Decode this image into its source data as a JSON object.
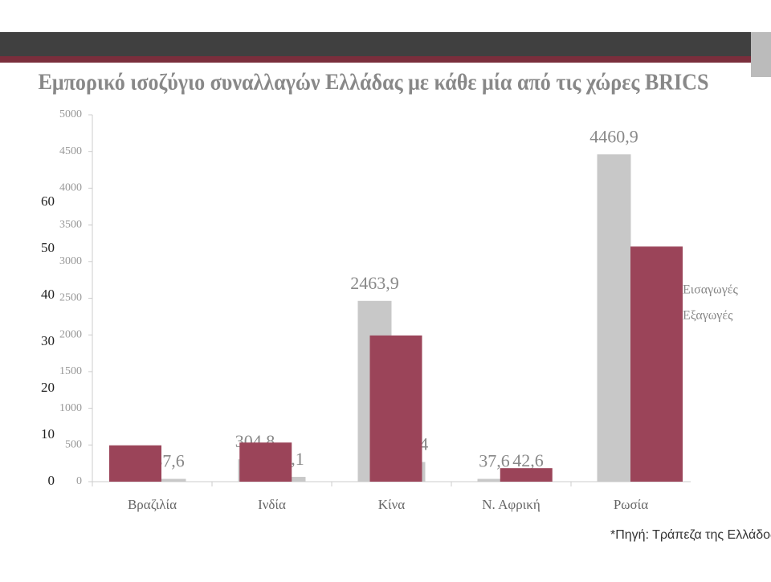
{
  "chart_data": {
    "type": "bar",
    "title": "Εμπορικό ισοζύγιο συναλλαγών  Ελλάδας με κάθε μία από τις χώρες BRICS",
    "categories": [
      "Βραζιλία",
      "Ινδία",
      "Κίνα",
      "Ν. Αφρική",
      "Ρωσία"
    ],
    "series": [
      {
        "name": "Εισαγωγές",
        "color": "#c8c8c8",
        "values": [
          480,
          304.8,
          2463.9,
          37.6,
          4460.9
        ],
        "value_labels": [
          null,
          "304,8",
          "2463,9",
          "37,6",
          "4460,9"
        ]
      },
      {
        "name": "Εξαγωγές",
        "color": "#c8c8c8",
        "values": [
          37.6,
          65.1,
          267.4,
          42.6,
          300
        ],
        "value_labels": [
          "37,6",
          "65,1",
          "267,4",
          "42,6",
          null
        ]
      },
      {
        "color": "#9b4459",
        "axis": "y2",
        "values": [
          7.8,
          8.4,
          31.4,
          2.9,
          50.5
        ]
      }
    ],
    "ylim": [
      0,
      5000
    ],
    "yticks": [
      0,
      500,
      1000,
      1500,
      2000,
      2500,
      3000,
      3500,
      4000,
      4500,
      5000
    ],
    "y2lim": [
      0,
      60
    ],
    "y2ticks": [
      0,
      10,
      20,
      30,
      40,
      50,
      60
    ],
    "source": "*Πηγή: Τράπεζα της Ελλάδος"
  }
}
